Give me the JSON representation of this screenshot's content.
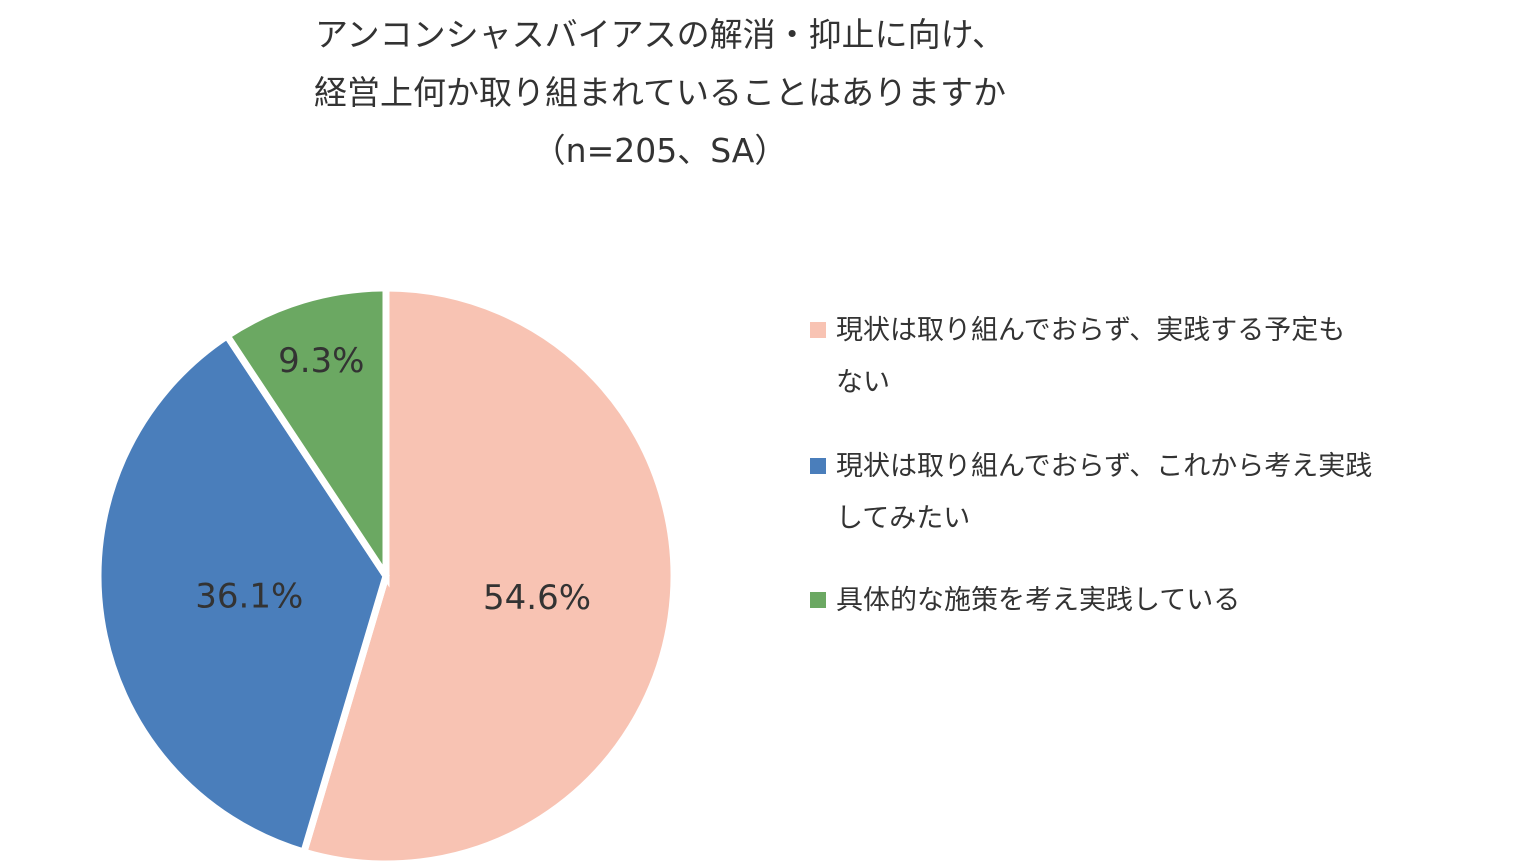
{
  "chart_data": {
    "type": "pie",
    "title_lines": [
      "アンコンシャスバイアスの解消・抑止に向け、",
      "経営上何か取り組まれていることはありますか",
      "（n=205、SA）"
    ],
    "slices": [
      {
        "label": "現状は取り組んでおらず、実践する予定もない",
        "label_lines": [
          "現状は取り組んでおらず、実践する予定も",
          "ない"
        ],
        "value": 54.6,
        "display": "54.6%",
        "color": "#F8C3B3"
      },
      {
        "label": "現状は取り組んでおらず、これから考え実践してみたい",
        "label_lines": [
          "現状は取り組んでおらず、これから考え実践",
          "してみたい"
        ],
        "value": 36.1,
        "display": "36.1%",
        "color": "#4A7EBB"
      },
      {
        "label": "具体的な施策を考え実践している",
        "label_lines": [
          "具体的な施策を考え実践している"
        ],
        "value": 9.3,
        "display": "9.3%",
        "color": "#6BA862"
      }
    ],
    "start_angle": "12 o'clock",
    "direction": "clockwise",
    "legend_position": "right"
  }
}
